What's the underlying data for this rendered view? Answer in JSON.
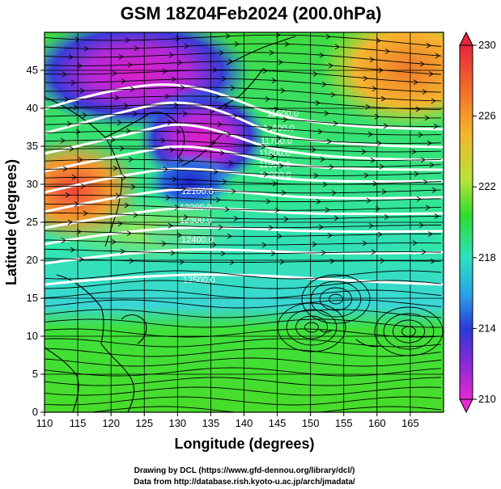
{
  "title": "GSM 18Z04Feb2024 (200.0hPa)",
  "xlabel": "Longitude (degrees)",
  "ylabel": "Latitude  (degrees)",
  "x_ticks": [
    "110",
    "115",
    "120",
    "125",
    "130",
    "135",
    "140",
    "145",
    "150",
    "155",
    "160",
    "165"
  ],
  "y_ticks": [
    "0",
    "5",
    "10",
    "15",
    "20",
    "25",
    "30",
    "35",
    "40",
    "45"
  ],
  "colorbar": {
    "ticks": [
      "230",
      "226",
      "222",
      "218",
      "214",
      "210"
    ],
    "range": [
      210,
      230
    ]
  },
  "contour_labels": [
    "11500.0",
    "11600.0",
    "11700.0",
    "11800.0",
    "11900.0",
    "12000.0",
    "12100.0",
    "12200.0",
    "12300.0",
    "12400.0",
    "12500.0"
  ],
  "credits": {
    "line1": "Drawing by DCL (https://www.gfd-dennou.org/library/dcl/)",
    "line2": "Data from http://database.rish.kyoto-u.ac.jp/arch/jmadata/"
  },
  "chart_data": {
    "type": "heatmap",
    "title": "GSM 18Z04Feb2024 (200.0hPa)",
    "xlabel": "Longitude (degrees)",
    "ylabel": "Latitude  (degrees)",
    "xlim": [
      110,
      170
    ],
    "ylim": [
      0,
      50
    ],
    "colorbar_range": [
      210,
      230
    ],
    "contour_levels": [
      11500,
      11600,
      11700,
      11800,
      11900,
      12000,
      12100,
      12200,
      12300,
      12400,
      12500
    ],
    "overlays": [
      "temperature shading",
      "geopotential height contours",
      "wind streamlines",
      "coastlines",
      "grid"
    ],
    "grid": true
  }
}
